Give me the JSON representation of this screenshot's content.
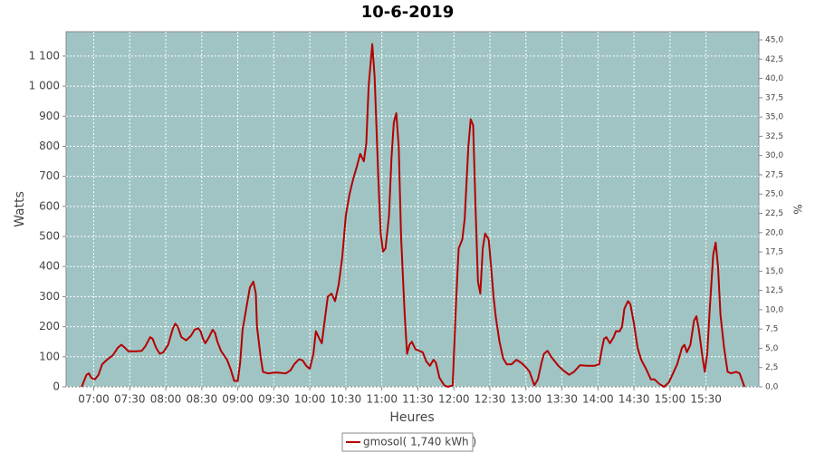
{
  "chart_data": {
    "type": "line",
    "title": "10-6-2019",
    "x_label": "Heures",
    "y_label": "Watts",
    "y2_label": "%",
    "x": [
      410,
      414,
      416,
      418,
      421,
      424,
      427,
      431,
      436,
      440,
      443,
      446,
      449,
      455,
      460,
      463,
      467,
      469,
      472,
      475,
      478,
      482,
      486,
      488,
      490,
      493,
      497,
      501,
      504,
      507,
      509,
      511,
      513,
      516,
      519,
      521,
      523,
      526,
      531,
      534,
      537,
      540,
      542,
      544,
      547,
      550,
      553,
      555,
      556,
      559,
      561,
      565,
      572,
      580,
      584,
      587,
      591,
      594,
      597,
      600,
      603,
      605,
      608,
      610,
      612,
      615,
      618,
      621,
      624,
      627,
      630,
      633,
      636,
      639,
      642,
      645,
      647,
      649,
      652,
      654,
      657,
      659,
      661,
      663,
      666,
      668,
      670,
      672,
      674,
      676,
      679,
      681,
      683,
      685,
      688,
      691,
      694,
      697,
      700,
      703,
      705,
      708,
      712,
      715,
      719,
      722,
      724,
      727,
      729,
      732,
      734,
      736,
      738,
      740,
      742,
      744,
      746,
      749,
      751,
      753,
      755,
      758,
      761,
      764,
      768,
      772,
      776,
      780,
      783,
      787,
      790,
      793,
      795,
      798,
      801,
      804,
      807,
      811,
      816,
      820,
      825,
      831,
      837,
      841,
      843,
      845,
      847,
      850,
      853,
      855,
      858,
      860,
      862,
      865,
      867,
      870,
      873,
      876,
      880,
      884,
      887,
      891,
      895,
      899,
      902,
      906,
      910,
      912,
      914,
      917,
      920,
      922,
      924,
      927,
      929,
      931,
      933,
      936,
      938,
      940,
      942,
      945,
      948,
      951,
      955,
      958,
      962
    ],
    "series": [
      {
        "name": "gmosol( 1,740 kWh )",
        "color": "#b40000",
        "values": [
          0,
          40,
          45,
          30,
          25,
          40,
          75,
          90,
          105,
          130,
          140,
          130,
          118,
          118,
          120,
          135,
          165,
          160,
          130,
          110,
          115,
          140,
          195,
          210,
          200,
          165,
          155,
          170,
          190,
          195,
          185,
          160,
          145,
          165,
          190,
          180,
          150,
          120,
          90,
          60,
          20,
          20,
          80,
          190,
          260,
          330,
          350,
          310,
          200,
          100,
          50,
          45,
          48,
          45,
          55,
          75,
          92,
          88,
          70,
          60,
          110,
          185,
          160,
          145,
          210,
          300,
          310,
          285,
          340,
          430,
          570,
          640,
          690,
          730,
          775,
          750,
          810,
          1000,
          1140,
          1030,
          700,
          510,
          450,
          460,
          570,
          760,
          880,
          910,
          800,
          500,
          240,
          110,
          140,
          150,
          125,
          120,
          115,
          85,
          70,
          90,
          80,
          30,
          5,
          0,
          5,
          300,
          460,
          490,
          560,
          800,
          890,
          870,
          600,
          350,
          310,
          460,
          510,
          490,
          400,
          300,
          230,
          150,
          95,
          75,
          75,
          90,
          80,
          65,
          50,
          5,
          25,
          80,
          110,
          120,
          100,
          85,
          70,
          55,
          40,
          50,
          72,
          70,
          70,
          75,
          120,
          160,
          165,
          145,
          165,
          185,
          185,
          200,
          260,
          285,
          275,
          210,
          130,
          90,
          60,
          25,
          25,
          10,
          0,
          15,
          40,
          75,
          130,
          140,
          115,
          140,
          220,
          235,
          190,
          100,
          50,
          110,
          250,
          440,
          480,
          400,
          240,
          130,
          50,
          45,
          50,
          45,
          0
        ]
      }
    ],
    "xlim": [
      397,
      974
    ],
    "xticks": [
      {
        "value": 420,
        "label": "07:00"
      },
      {
        "value": 450,
        "label": "07:30"
      },
      {
        "value": 480,
        "label": "08:00"
      },
      {
        "value": 510,
        "label": "08:30"
      },
      {
        "value": 540,
        "label": "09:00"
      },
      {
        "value": 570,
        "label": "09:30"
      },
      {
        "value": 600,
        "label": "10:00"
      },
      {
        "value": 630,
        "label": "10:30"
      },
      {
        "value": 660,
        "label": "11:00"
      },
      {
        "value": 690,
        "label": "11:30"
      },
      {
        "value": 720,
        "label": "12:00"
      },
      {
        "value": 750,
        "label": "12:30"
      },
      {
        "value": 780,
        "label": "13:00"
      },
      {
        "value": 810,
        "label": "13:30"
      },
      {
        "value": 840,
        "label": "14:00"
      },
      {
        "value": 870,
        "label": "14:30"
      },
      {
        "value": 900,
        "label": "15:00"
      },
      {
        "value": 930,
        "label": "15:30"
      }
    ],
    "ylim": [
      0,
      1181
    ],
    "yticks": [
      0,
      100,
      200,
      300,
      400,
      500,
      600,
      700,
      800,
      900,
      {
        "value": 1000,
        "label": "1 000"
      },
      {
        "value": 1100,
        "label": "1 100"
      }
    ],
    "y2lim": [
      0,
      46.06
    ],
    "y2ticks": [
      {
        "value": 0,
        "label": "0,0"
      },
      {
        "value": 2.5,
        "label": "2,5"
      },
      {
        "value": 5,
        "label": "5,0"
      },
      {
        "value": 7.5,
        "label": "7,5"
      },
      {
        "value": 10,
        "label": "10,0"
      },
      {
        "value": 12.5,
        "label": "12,5"
      },
      {
        "value": 15,
        "label": "15,0"
      },
      {
        "value": 17.5,
        "label": "17,5"
      },
      {
        "value": 20,
        "label": "20,0"
      },
      {
        "value": 22.5,
        "label": "22,5"
      },
      {
        "value": 25,
        "label": "25,0"
      },
      {
        "value": 27.5,
        "label": "27,5"
      },
      {
        "value": 30,
        "label": "30,0"
      },
      {
        "value": 32.5,
        "label": "32,5"
      },
      {
        "value": 35,
        "label": "35,0"
      },
      {
        "value": 37.5,
        "label": "37,5"
      },
      {
        "value": 40,
        "label": "40,0"
      },
      {
        "value": 42.5,
        "label": "42,5"
      },
      {
        "value": 45,
        "label": "45,0"
      }
    ],
    "grid": true,
    "plot_color": "#a0c4c4",
    "legend": "bottom"
  }
}
